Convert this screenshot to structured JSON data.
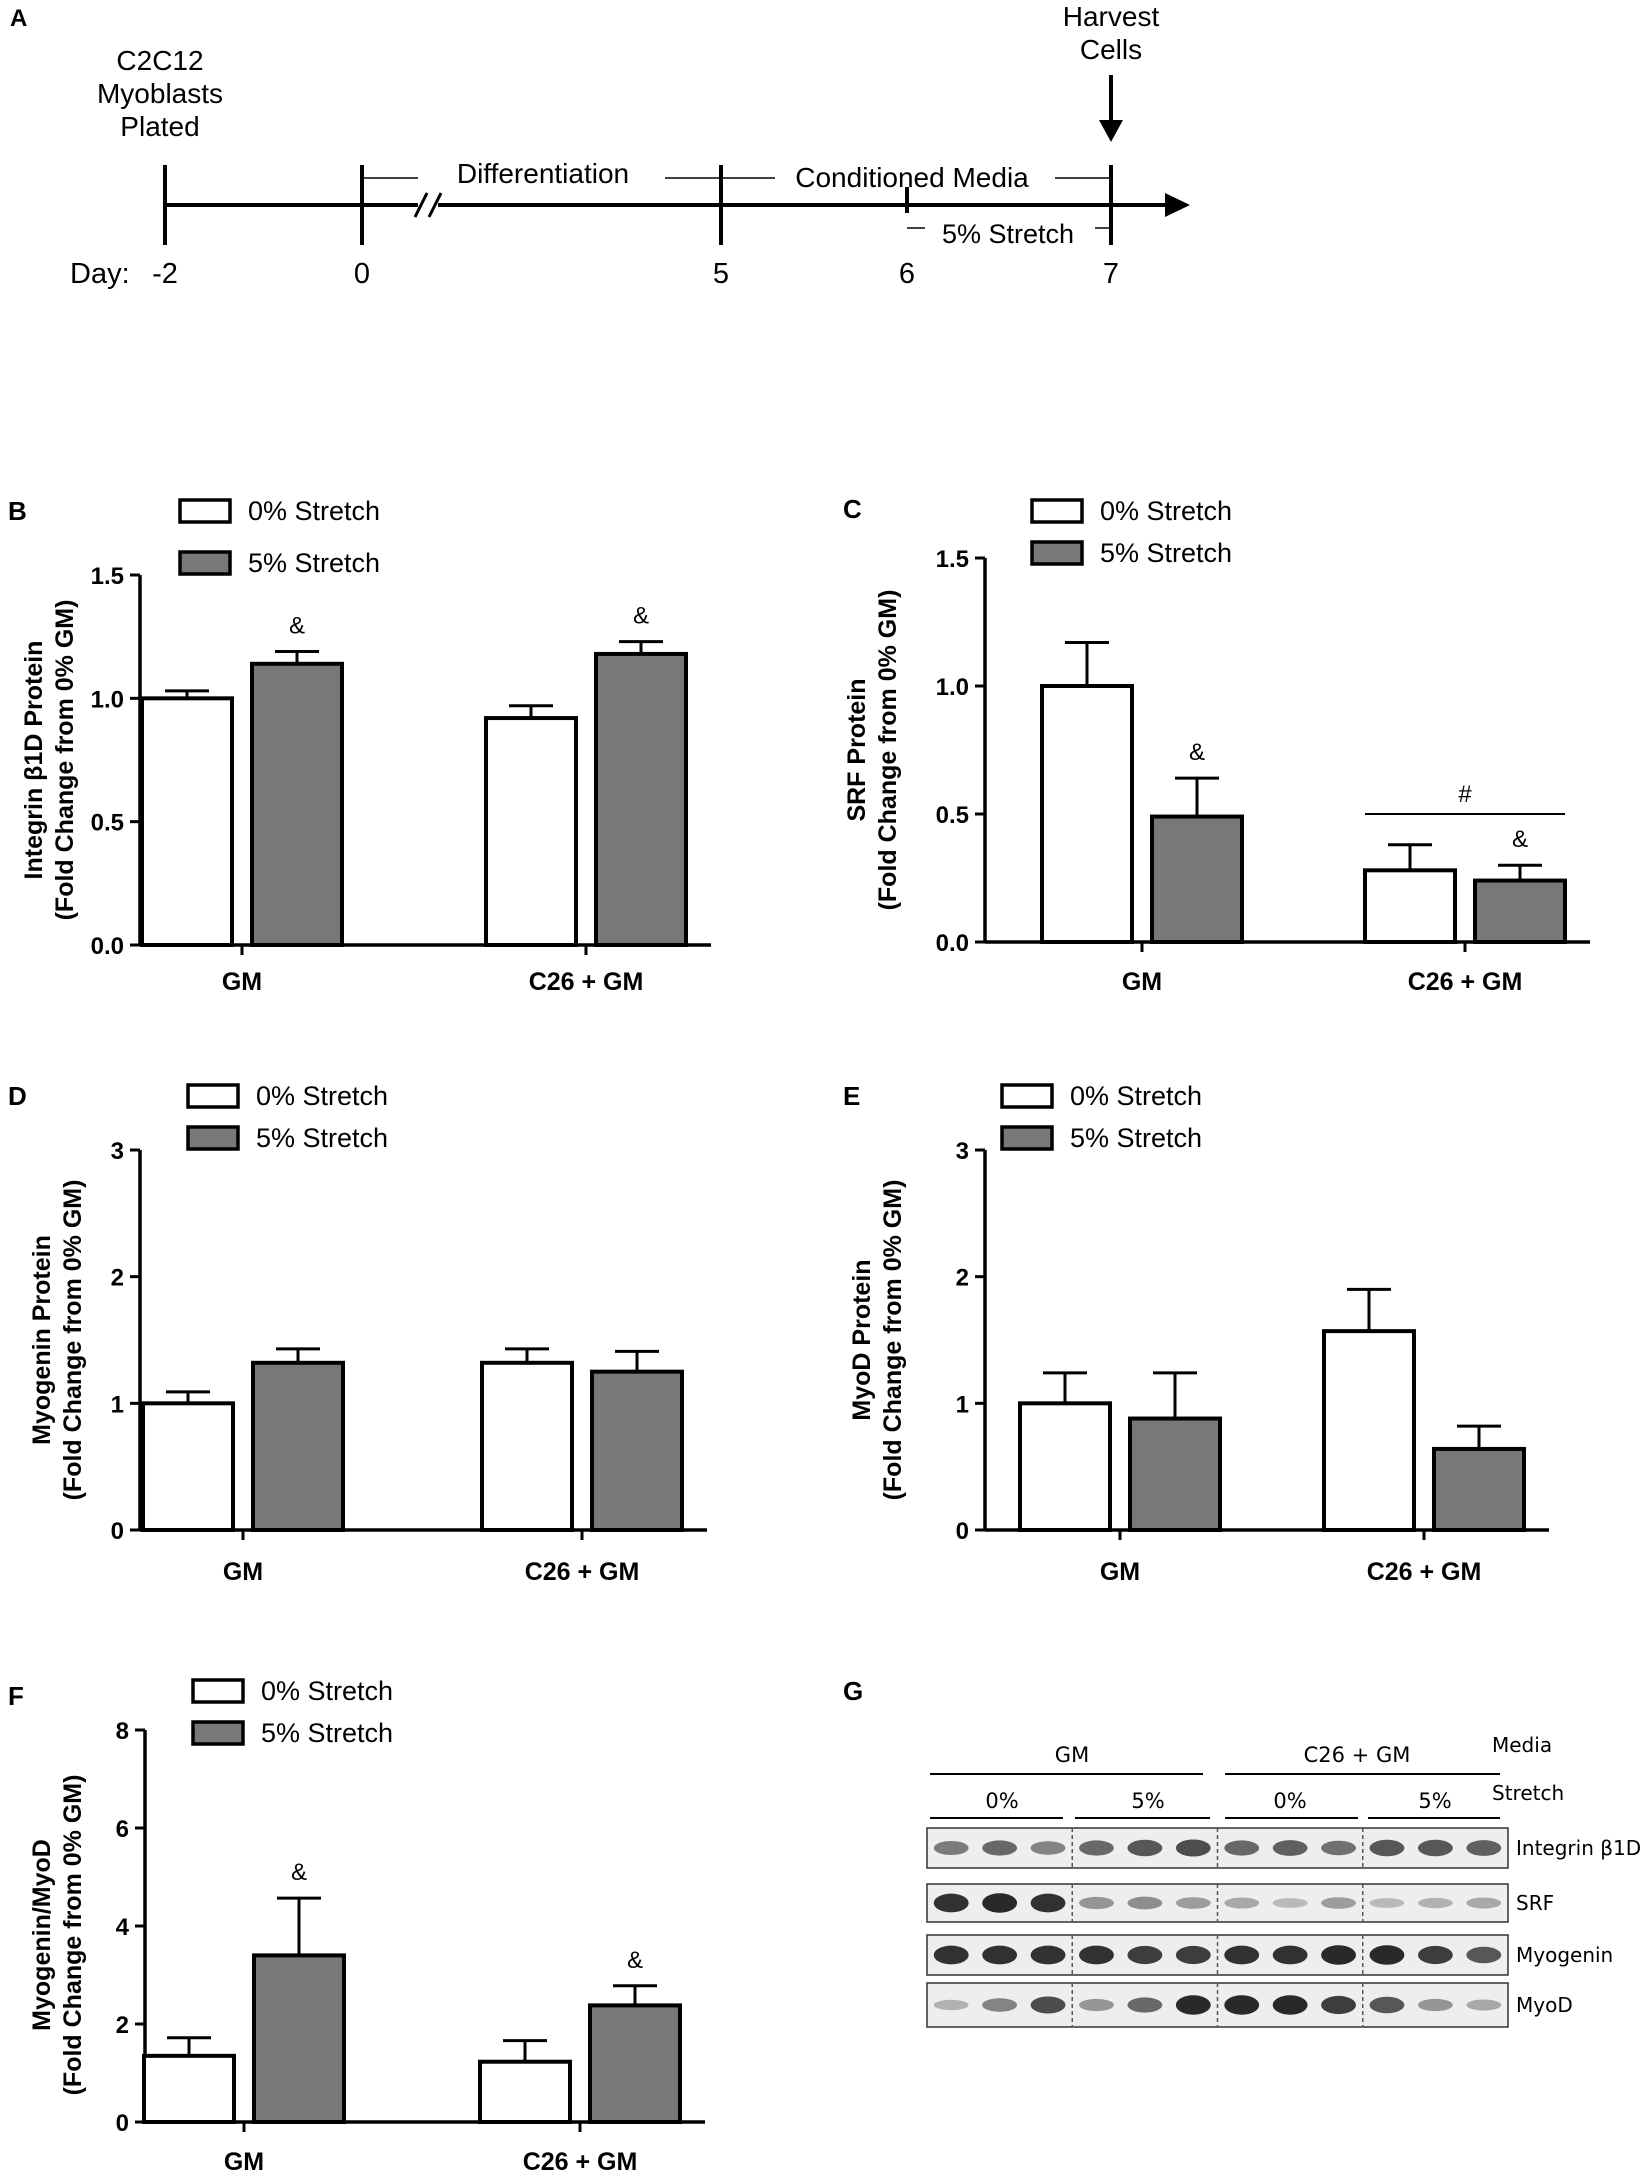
{
  "legend": {
    "s0": "0% Stretch",
    "s5": "5% Stretch"
  },
  "colors": {
    "bar0": "#ffffff",
    "bar5": "#787878",
    "stroke": "#000000",
    "blotBg": "#eeeeee",
    "band": "#1a1a1a"
  },
  "timeline": {
    "panel": "A",
    "day_prefix": "Day:",
    "days": [
      "-2",
      "0",
      "5",
      "6",
      "7"
    ],
    "plated": [
      "C2C12",
      "Myoblasts",
      "Plated"
    ],
    "harvest": [
      "Harvest",
      "Cells"
    ],
    "differentiation": "Differentiation",
    "conditioned": "Conditioned Media",
    "stretch": "5% Stretch"
  },
  "chart_data": [
    {
      "panel": "B",
      "type": "bar",
      "categories": [
        "GM",
        "C26 + GM"
      ],
      "series": [
        {
          "name": "0% Stretch",
          "values": [
            1.0,
            0.92
          ],
          "errors": [
            0.03,
            0.05
          ]
        },
        {
          "name": "5% Stretch",
          "values": [
            1.14,
            1.18
          ],
          "errors": [
            0.05,
            0.05
          ]
        }
      ],
      "ylabel": [
        "Integrin β1D Protein",
        "(Fold Change from 0% GM)"
      ],
      "ylim": [
        0,
        1.5
      ],
      "yticks": [
        "0.0",
        "0.5",
        "1.0",
        "1.5"
      ],
      "annotations": [
        {
          "cat": 0,
          "series": 1,
          "text": "&"
        },
        {
          "cat": 1,
          "series": 1,
          "text": "&"
        }
      ]
    },
    {
      "panel": "C",
      "type": "bar",
      "categories": [
        "GM",
        "C26 + GM"
      ],
      "series": [
        {
          "name": "0% Stretch",
          "values": [
            1.0,
            0.28
          ],
          "errors": [
            0.17,
            0.1
          ]
        },
        {
          "name": "5% Stretch",
          "values": [
            0.49,
            0.24
          ],
          "errors": [
            0.15,
            0.06
          ]
        }
      ],
      "ylabel": [
        "SRF Protein",
        "(Fold Change from 0% GM)"
      ],
      "ylim": [
        0,
        1.5
      ],
      "yticks": [
        "0.0",
        "0.5",
        "1.0",
        "1.5"
      ],
      "annotations": [
        {
          "cat": 0,
          "series": 1,
          "text": "&"
        },
        {
          "cat": 1,
          "series": 1,
          "text": "&"
        }
      ],
      "bracket": {
        "cat": 1,
        "text": "#",
        "y": 0.5
      }
    },
    {
      "panel": "D",
      "type": "bar",
      "categories": [
        "GM",
        "C26 + GM"
      ],
      "series": [
        {
          "name": "0% Stretch",
          "values": [
            1.0,
            1.32
          ],
          "errors": [
            0.09,
            0.11
          ]
        },
        {
          "name": "5% Stretch",
          "values": [
            1.32,
            1.25
          ],
          "errors": [
            0.11,
            0.16
          ]
        }
      ],
      "ylabel": [
        "Myogenin Protein",
        "(Fold Change from 0% GM)"
      ],
      "ylim": [
        0,
        3
      ],
      "yticks": [
        "0",
        "1",
        "2",
        "3"
      ],
      "annotations": []
    },
    {
      "panel": "E",
      "type": "bar",
      "categories": [
        "GM",
        "C26 + GM"
      ],
      "series": [
        {
          "name": "0% Stretch",
          "values": [
            1.0,
            1.57
          ],
          "errors": [
            0.24,
            0.33
          ]
        },
        {
          "name": "5% Stretch",
          "values": [
            0.88,
            0.64
          ],
          "errors": [
            0.36,
            0.18
          ]
        }
      ],
      "ylabel": [
        "MyoD Protein",
        "(Fold Change from 0% GM)"
      ],
      "ylim": [
        0,
        3
      ],
      "yticks": [
        "0",
        "1",
        "2",
        "3"
      ],
      "annotations": []
    },
    {
      "panel": "F",
      "type": "bar",
      "categories": [
        "GM",
        "C26 + GM"
      ],
      "series": [
        {
          "name": "0% Stretch",
          "values": [
            1.35,
            1.23
          ],
          "errors": [
            0.37,
            0.43
          ]
        },
        {
          "name": "5% Stretch",
          "values": [
            3.4,
            2.38
          ],
          "errors": [
            1.17,
            0.4
          ]
        }
      ],
      "ylabel": [
        "Myogenin/MyoD",
        "(Fold Change from 0% GM)"
      ],
      "ylim": [
        0,
        8
      ],
      "yticks": [
        "0",
        "2",
        "4",
        "6",
        "8"
      ],
      "annotations": [
        {
          "cat": 0,
          "series": 1,
          "text": "&"
        },
        {
          "cat": 1,
          "series": 1,
          "text": "&"
        }
      ]
    }
  ],
  "blot": {
    "panel": "G",
    "media_label": "Media",
    "stretch_label": "Stretch",
    "groups": [
      "GM",
      "C26 + GM"
    ],
    "stretches": [
      "0%",
      "5%",
      "0%",
      "5%"
    ],
    "rows": [
      {
        "label": "Integrin β1D",
        "intensity": [
          0.5,
          0.6,
          0.45,
          0.6,
          0.7,
          0.75,
          0.6,
          0.65,
          0.55,
          0.7,
          0.7,
          0.65
        ]
      },
      {
        "label": "SRF",
        "intensity": [
          0.9,
          0.95,
          0.9,
          0.35,
          0.4,
          0.3,
          0.25,
          0.15,
          0.3,
          0.15,
          0.2,
          0.25
        ]
      },
      {
        "label": "Myogenin",
        "intensity": [
          0.9,
          0.9,
          0.9,
          0.9,
          0.85,
          0.85,
          0.9,
          0.9,
          0.95,
          0.95,
          0.85,
          0.7
        ]
      },
      {
        "label": "MyoD",
        "intensity": [
          0.2,
          0.45,
          0.75,
          0.35,
          0.6,
          0.95,
          0.95,
          0.95,
          0.85,
          0.7,
          0.35,
          0.25
        ]
      }
    ]
  }
}
